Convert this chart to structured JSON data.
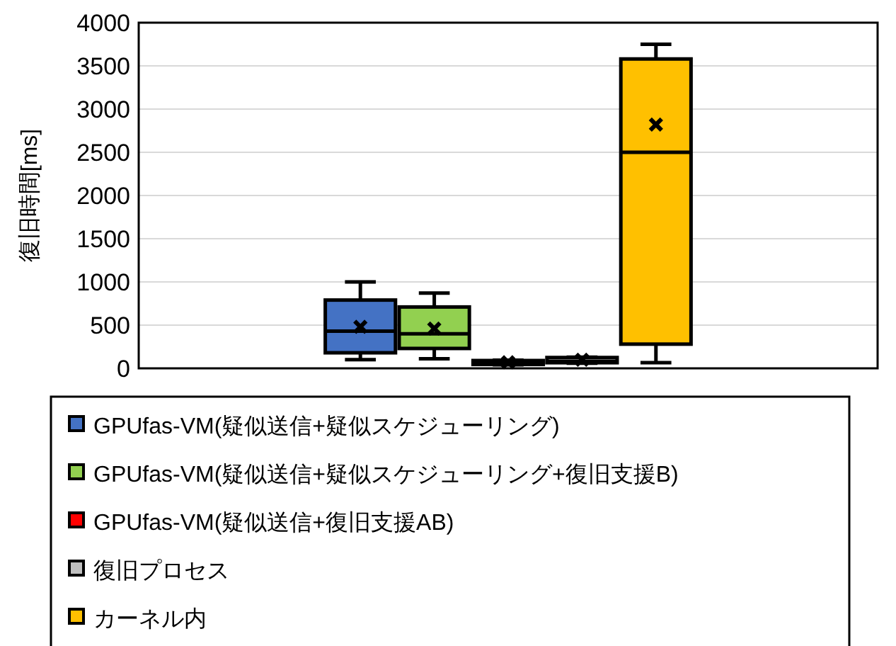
{
  "chart_data": {
    "type": "box",
    "ylabel": "復旧時間[ms]",
    "categories": [
      null
    ],
    "ylim": [
      0,
      4000
    ],
    "yticks": [
      0,
      500,
      1000,
      1500,
      2000,
      2500,
      3000,
      3500,
      4000
    ],
    "grid": "y",
    "legend": "bottom",
    "marker": "cross",
    "series": [
      {
        "name": "GPUfas-VM(疑似送信+疑似スケジューリング)",
        "color": "#4472c4",
        "boxes": [
          {
            "low": 100,
            "q1": 180,
            "median": 430,
            "q3": 790,
            "high": 1000,
            "mean": 480
          }
        ]
      },
      {
        "name": "GPUfas-VM(疑似送信+疑似スケジューリング+復旧支援B)",
        "color": "#92d050",
        "boxes": [
          {
            "low": 110,
            "q1": 230,
            "median": 400,
            "q3": 710,
            "high": 870,
            "mean": 460
          }
        ]
      },
      {
        "name": "GPUfas-VM(疑似送信+復旧支援AB)",
        "color": "#ff0000",
        "boxes": [
          {
            "low": 40,
            "q1": 45,
            "median": 60,
            "q3": 90,
            "high": 95,
            "mean": 70
          }
        ]
      },
      {
        "name": "復旧プロセス",
        "color": "#c0c0c0",
        "boxes": [
          {
            "low": 60,
            "q1": 65,
            "median": 80,
            "q3": 125,
            "high": 130,
            "mean": 100
          }
        ]
      },
      {
        "name": "カーネル内",
        "color": "#ffc000",
        "boxes": [
          {
            "low": 66,
            "q1": 280,
            "median": 2500,
            "q3": 3580,
            "high": 3750,
            "mean": 2820
          }
        ]
      }
    ]
  }
}
